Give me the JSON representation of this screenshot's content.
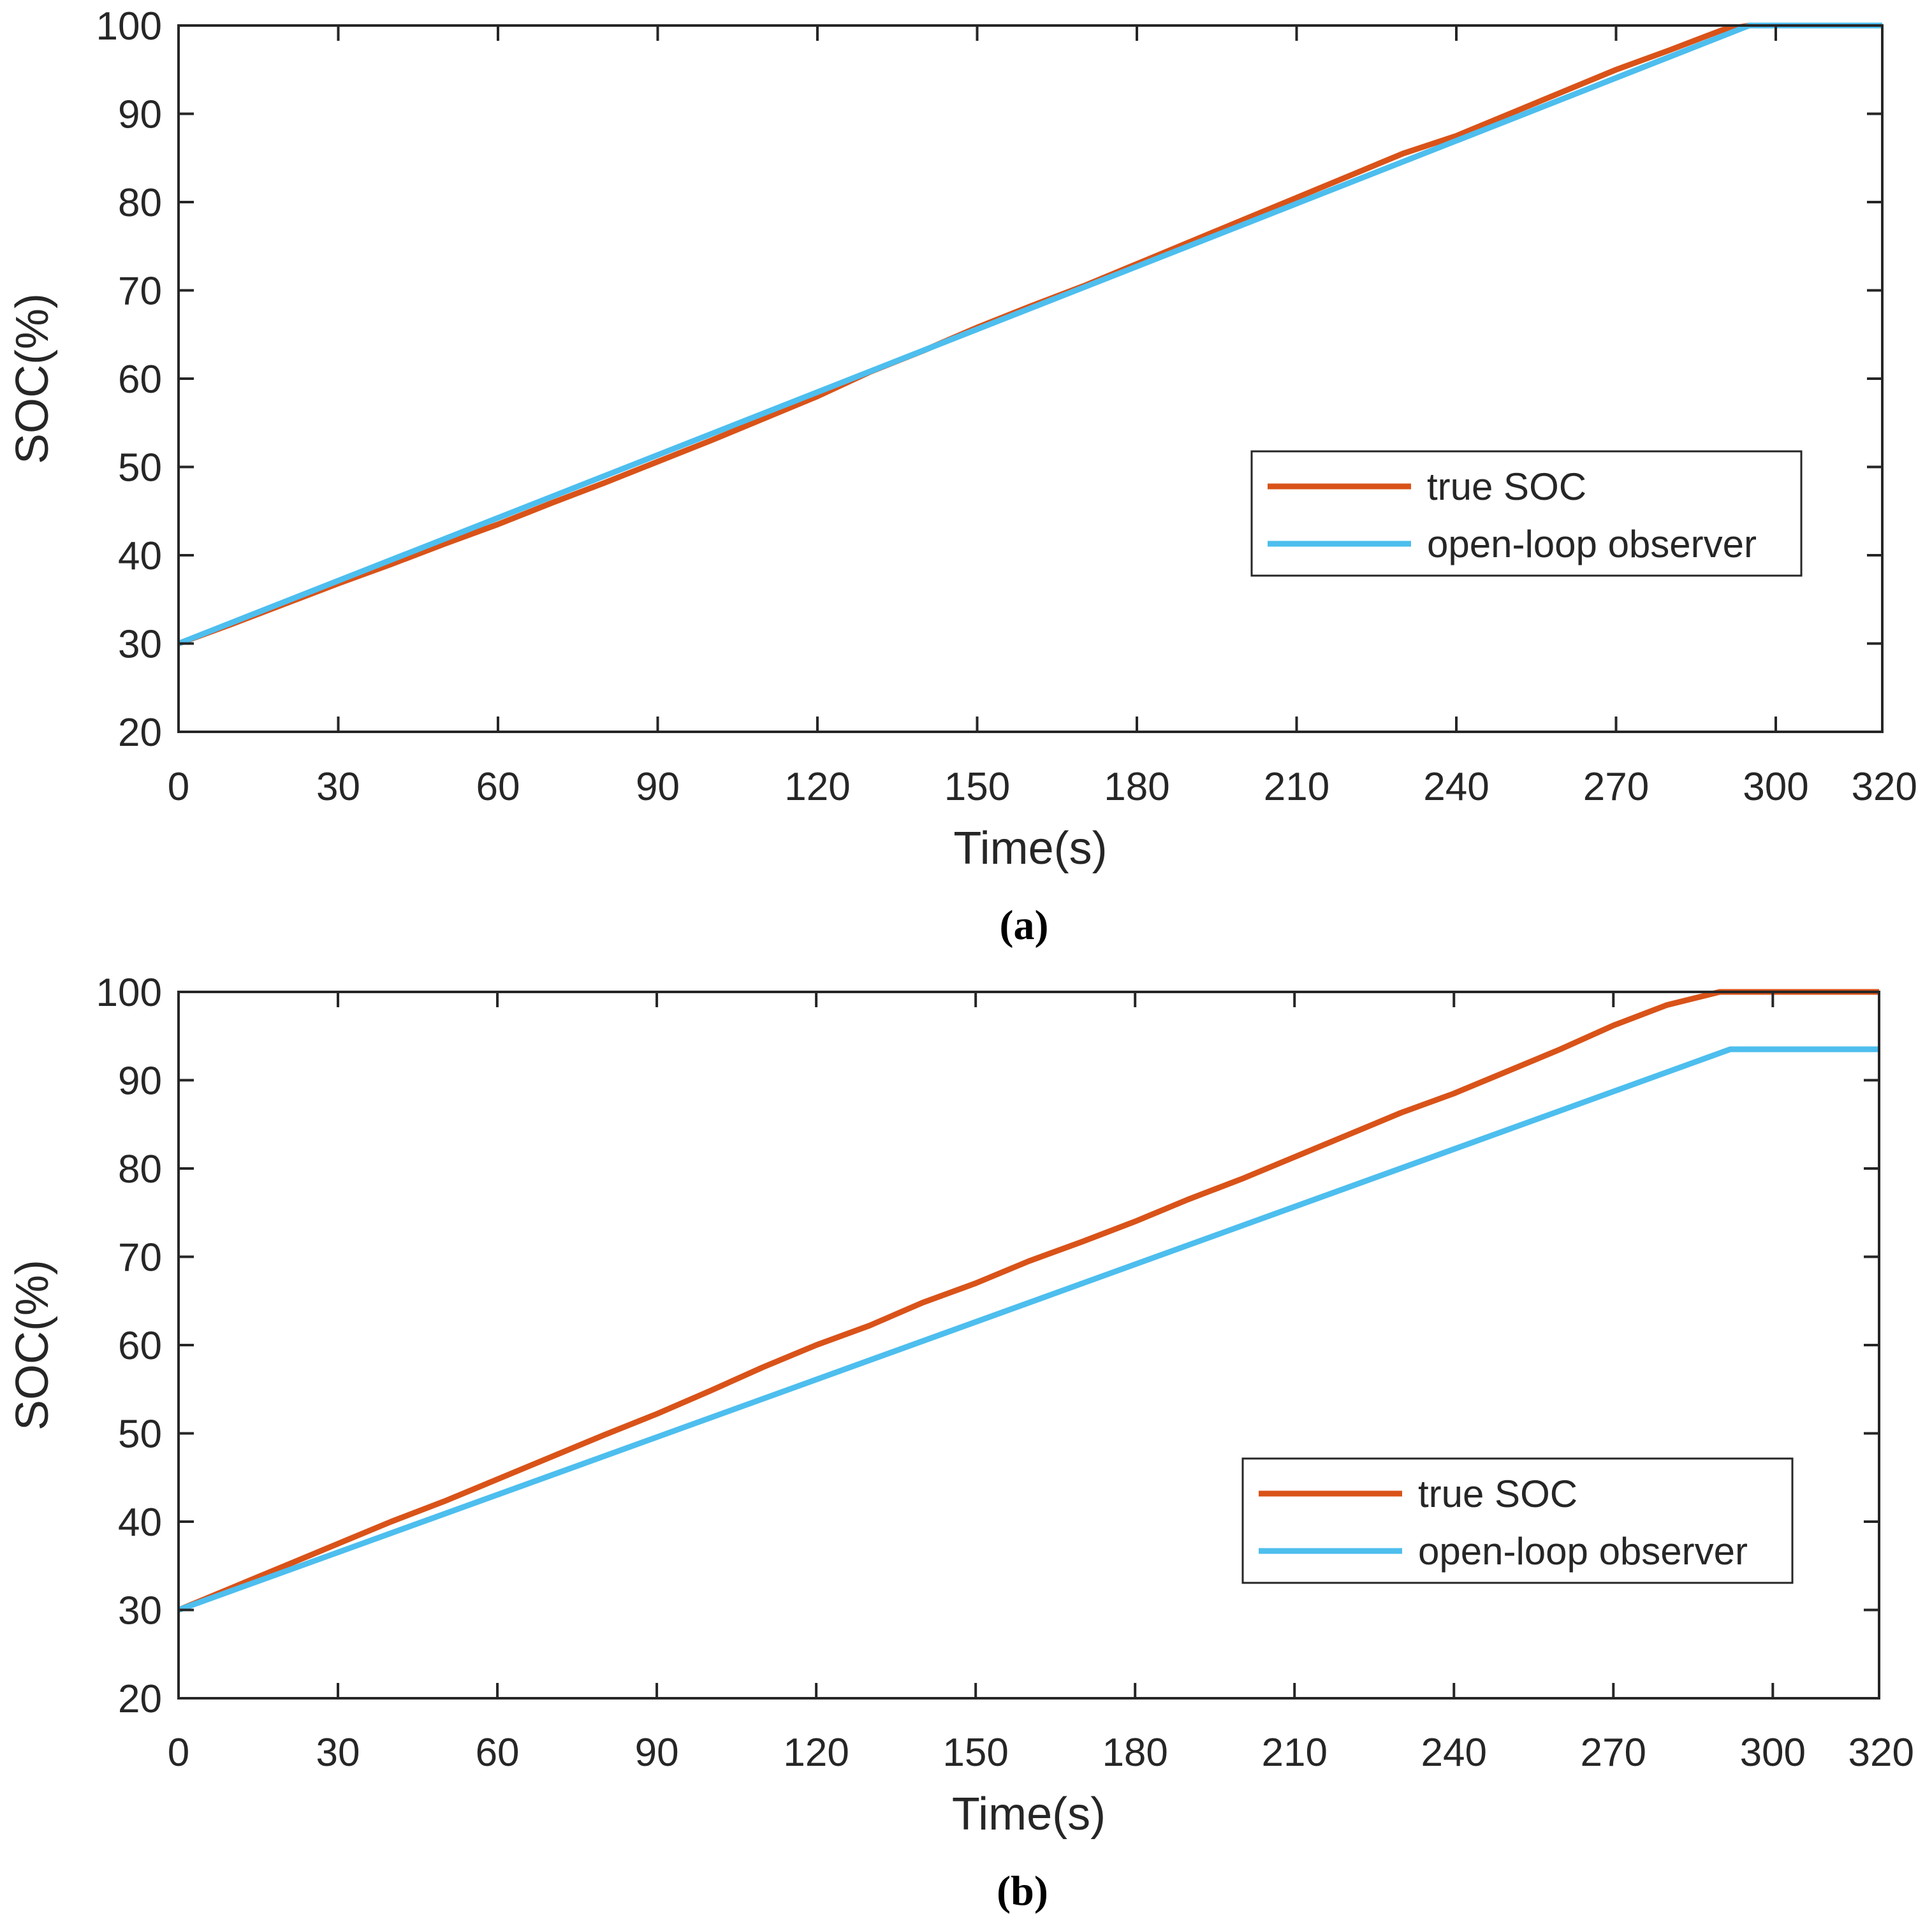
{
  "colors": {
    "true_soc": "#d95319",
    "open_loop": "#4dbeee",
    "axis": "#262626"
  },
  "chart_data": [
    {
      "type": "line",
      "panel": "a",
      "caption": "(a)",
      "xlabel": "Time(s)",
      "ylabel": "SOC(%)",
      "xlim": [
        0,
        320
      ],
      "ylim": [
        20,
        100
      ],
      "xticks": [
        0,
        30,
        60,
        90,
        120,
        150,
        180,
        210,
        240,
        270,
        300,
        320
      ],
      "yticks": [
        20,
        30,
        40,
        50,
        60,
        70,
        80,
        90,
        100
      ],
      "grid": false,
      "legend_position": "bottom-right",
      "series": [
        {
          "name": "true SOC",
          "color": "#d95319",
          "x": [
            0,
            10,
            20,
            30,
            40,
            50,
            60,
            70,
            80,
            90,
            100,
            110,
            120,
            130,
            140,
            150,
            160,
            170,
            180,
            190,
            200,
            210,
            220,
            230,
            240,
            250,
            260,
            270,
            280,
            290,
            295,
            300,
            320
          ],
          "y": [
            30,
            32.2,
            34.5,
            36.8,
            39.0,
            41.3,
            43.5,
            45.9,
            48.2,
            50.6,
            53.0,
            55.5,
            58.0,
            60.8,
            63.2,
            65.8,
            68.2,
            70.5,
            73.0,
            75.5,
            78.0,
            80.5,
            83.0,
            85.5,
            87.5,
            90.0,
            92.5,
            95.0,
            97.2,
            99.5,
            100,
            100,
            100
          ]
        },
        {
          "name": "open-loop observer",
          "color": "#4dbeee",
          "x": [
            0,
            295,
            300,
            320
          ],
          "y": [
            30,
            100,
            100,
            100
          ]
        }
      ]
    },
    {
      "type": "line",
      "panel": "b",
      "caption": "(b)",
      "xlabel": "Time(s)",
      "ylabel": "SOC(%)",
      "xlim": [
        0,
        320
      ],
      "ylim": [
        20,
        100
      ],
      "xticks": [
        0,
        30,
        60,
        90,
        120,
        150,
        180,
        210,
        240,
        270,
        300,
        320
      ],
      "yticks": [
        20,
        30,
        40,
        50,
        60,
        70,
        80,
        90,
        100
      ],
      "grid": false,
      "legend_position": "bottom-right",
      "series": [
        {
          "name": "true SOC",
          "color": "#d95319",
          "x": [
            0,
            10,
            20,
            30,
            40,
            50,
            60,
            70,
            80,
            90,
            100,
            110,
            120,
            130,
            140,
            150,
            160,
            170,
            180,
            190,
            200,
            210,
            220,
            230,
            240,
            250,
            260,
            270,
            280,
            290,
            295,
            300,
            320
          ],
          "y": [
            30,
            32.5,
            35.0,
            37.5,
            40.0,
            42.3,
            44.8,
            47.3,
            49.8,
            52.2,
            54.8,
            57.5,
            60.0,
            62.2,
            64.8,
            67.0,
            69.5,
            71.7,
            74.0,
            76.5,
            78.8,
            81.3,
            83.8,
            86.3,
            88.5,
            91.0,
            93.5,
            96.2,
            98.5,
            100,
            100,
            100,
            100
          ]
        },
        {
          "name": "open-loop observer",
          "color": "#4dbeee",
          "x": [
            0,
            292,
            300,
            320
          ],
          "y": [
            30,
            93.5,
            93.5,
            93.5
          ]
        }
      ]
    }
  ]
}
